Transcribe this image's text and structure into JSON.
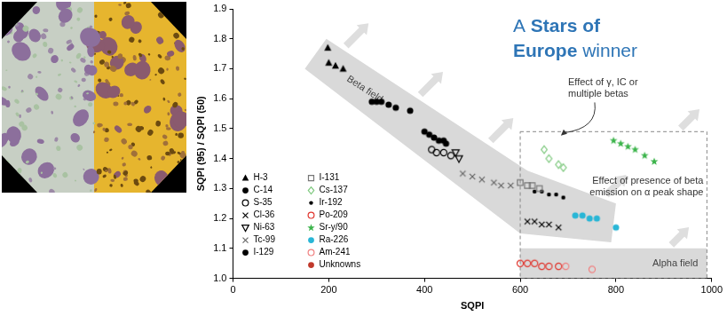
{
  "chart_data": {
    "type": "scatter",
    "xlabel": "SQPI",
    "ylabel": "SQPI (95) / SQPI (50)",
    "xlim": [
      0,
      1000
    ],
    "xticks": [
      0,
      200,
      400,
      600,
      800,
      1000
    ],
    "ylim": [
      1,
      1.9
    ],
    "yticks": [
      {
        "value": 1,
        "label": "1.0"
      },
      1.1,
      1.2,
      1.3,
      1.4,
      1.5,
      1.6,
      1.7,
      1.8,
      1.9
    ],
    "grid": false,
    "legend": "lower left",
    "series": [
      {
        "name": "H-3",
        "marker": "triangle",
        "color": "#000000",
        "x": [
          198,
          200,
          214,
          230
        ],
        "values": [
          1.77,
          1.72,
          1.71,
          1.7
        ]
      },
      {
        "name": "C-14",
        "marker": "circle",
        "color": "#000000",
        "x": [
          290,
          300,
          310,
          325,
          340,
          370
        ],
        "values": [
          1.59,
          1.59,
          1.59,
          1.58,
          1.57,
          1.56
        ]
      },
      {
        "name": "S-35",
        "marker": "open_circle",
        "color": "#000000",
        "x": [
          415,
          425,
          440,
          455
        ],
        "values": [
          1.43,
          1.42,
          1.42,
          1.41
        ]
      },
      {
        "name": "Cl-36",
        "marker": "x",
        "color": "#000000",
        "x": [
          615,
          630,
          645,
          660,
          680
        ],
        "values": [
          1.19,
          1.19,
          1.18,
          1.18,
          1.17
        ]
      },
      {
        "name": "Ni-63",
        "marker": "open_triangle_down",
        "color": "#000000",
        "x": [
          465,
          472
        ],
        "values": [
          1.42,
          1.4
        ]
      },
      {
        "name": "Tc-99",
        "marker": "x",
        "color": "#666666",
        "x": [
          480,
          500,
          520,
          545,
          560,
          580
        ],
        "values": [
          1.35,
          1.34,
          1.33,
          1.32,
          1.31,
          1.31
        ]
      },
      {
        "name": "I-129",
        "marker": "circle",
        "color": "#000000",
        "x": [
          400,
          410,
          420,
          430,
          440,
          445
        ],
        "values": [
          1.49,
          1.48,
          1.47,
          1.46,
          1.46,
          1.45
        ]
      },
      {
        "name": "I-131",
        "marker": "open_square",
        "color": "#777777",
        "x": [
          600,
          615,
          625,
          640
        ],
        "values": [
          1.32,
          1.31,
          1.31,
          1.3
        ]
      },
      {
        "name": "Cs-137",
        "marker": "open_diamond",
        "color": "#7fc97f",
        "x": [
          650,
          660,
          680,
          690
        ],
        "values": [
          1.43,
          1.4,
          1.38,
          1.37
        ]
      },
      {
        "name": "Ir-192",
        "marker": "dot",
        "color": "#000000",
        "x": [
          630,
          645,
          660,
          675,
          690
        ],
        "values": [
          1.29,
          1.29,
          1.28,
          1.28,
          1.27
        ]
      },
      {
        "name": "Po-209",
        "marker": "open_circle",
        "color": "#e0342c",
        "x": [
          600,
          615,
          630,
          645,
          660,
          680
        ],
        "values": [
          1.05,
          1.05,
          1.05,
          1.04,
          1.04,
          1.04
        ]
      },
      {
        "name": "Sr-y/90",
        "marker": "star",
        "color": "#3cb44b",
        "x": [
          795,
          810,
          825,
          840,
          860,
          880
        ],
        "values": [
          1.46,
          1.45,
          1.44,
          1.43,
          1.41,
          1.39
        ]
      },
      {
        "name": "Ra-226",
        "marker": "circle",
        "color": "#29b6d6",
        "x": [
          715,
          730,
          745,
          760,
          800
        ],
        "values": [
          1.21,
          1.21,
          1.2,
          1.2,
          1.17
        ]
      },
      {
        "name": "Am-241",
        "marker": "open_circle",
        "color": "#f08080",
        "x": [
          695,
          750
        ],
        "values": [
          1.04,
          1.03
        ]
      },
      {
        "name": "Unknowns",
        "marker": "circle",
        "color": "#c0392b",
        "x": [],
        "values": []
      }
    ],
    "regions": [
      {
        "label": "Beta field",
        "points": [
          [
            150,
            1.7
          ],
          [
            195,
            1.8
          ],
          [
            615,
            1.36
          ],
          [
            800,
            1.25
          ],
          [
            790,
            1.12
          ],
          [
            600,
            1.15
          ]
        ]
      },
      {
        "label": "Alpha field",
        "points": [
          [
            600,
            1.0
          ],
          [
            990,
            1.0
          ],
          [
            990,
            1.1
          ],
          [
            600,
            1.1
          ]
        ]
      }
    ],
    "dashed_box": {
      "x": [
        600,
        990
      ],
      "y": [
        1.0,
        1.49
      ]
    },
    "annotations": [
      "Effect of γ, IC or multiple betas",
      "Effect of presence of beta emission on α peak shape"
    ],
    "badge": {
      "text": "A Stars of Europe winner",
      "bold": "Stars of Europe"
    }
  }
}
